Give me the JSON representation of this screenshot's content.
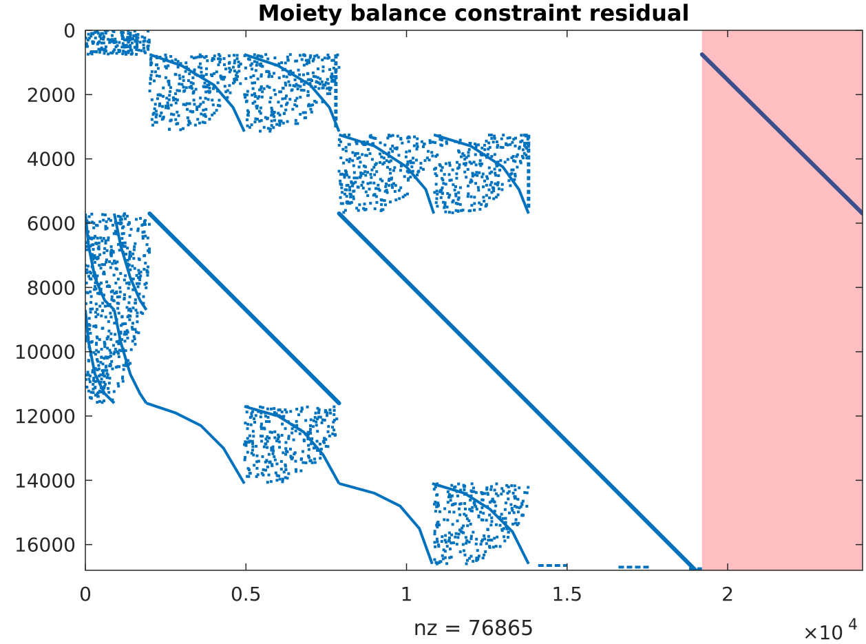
{
  "chart_data": {
    "type": "spy",
    "title": "Moiety balance constraint residual",
    "xlabel": "nz = 76865",
    "ylabel": "",
    "nz": 76865,
    "x_exponent_label": "×10",
    "x_exponent_power": "4",
    "xlim": [
      0,
      24200
    ],
    "ylim": [
      0,
      16800
    ],
    "y_reversed": true,
    "grid": false,
    "x_ticks": [
      {
        "value": 0,
        "label": "0"
      },
      {
        "value": 5000,
        "label": "0.5"
      },
      {
        "value": 10000,
        "label": "1"
      },
      {
        "value": 15000,
        "label": "1.5"
      },
      {
        "value": 20000,
        "label": "2"
      }
    ],
    "y_ticks": [
      {
        "value": 0,
        "label": "0"
      },
      {
        "value": 2000,
        "label": "2000"
      },
      {
        "value": 4000,
        "label": "4000"
      },
      {
        "value": 6000,
        "label": "6000"
      },
      {
        "value": 8000,
        "label": "8000"
      },
      {
        "value": 10000,
        "label": "10000"
      },
      {
        "value": 12000,
        "label": "12000"
      },
      {
        "value": 14000,
        "label": "14000"
      },
      {
        "value": 16000,
        "label": "16000"
      }
    ],
    "highlight_region": {
      "x_range": [
        19200,
        24200
      ],
      "color": "#ffbfc2"
    },
    "marker_color": "#0072bd",
    "highlight_line_color": "#3a4f8c",
    "diagonal_lines": [
      {
        "x": [
          2000,
          7900
        ],
        "y": [
          5700,
          11600
        ]
      },
      {
        "x": [
          7900,
          19000
        ],
        "y": [
          5700,
          16800
        ]
      },
      {
        "x": [
          19200,
          24200
        ],
        "y": [
          750,
          5700
        ],
        "highlighted": true
      }
    ],
    "curves": [
      {
        "x": [
          2000,
          3000,
          4000,
          4600,
          4950
        ],
        "y": [
          750,
          1100,
          1700,
          2400,
          3150
        ]
      },
      {
        "x": [
          4950,
          6000,
          7000,
          7600,
          7900
        ],
        "y": [
          750,
          1100,
          1700,
          2400,
          3150
        ]
      },
      {
        "x": [
          7900,
          9000,
          10000,
          10600,
          10850
        ],
        "y": [
          3250,
          3600,
          4250,
          4950,
          5700
        ]
      },
      {
        "x": [
          10850,
          12000,
          13000,
          13500,
          13800
        ],
        "y": [
          3250,
          3600,
          4250,
          4950,
          5700
        ]
      },
      {
        "x": [
          0,
          100,
          300,
          600,
          900
        ],
        "y": [
          5700,
          6700,
          7700,
          8400,
          8700
        ]
      },
      {
        "x": [
          900,
          1100,
          1400,
          1700,
          1900
        ],
        "y": [
          5700,
          6700,
          7700,
          8400,
          8700
        ]
      },
      {
        "x": [
          0,
          100,
          300,
          600,
          900
        ],
        "y": [
          8700,
          9700,
          10700,
          11300,
          11600
        ]
      },
      {
        "x": [
          900,
          1100,
          1400,
          1700,
          1900
        ],
        "y": [
          8700,
          9700,
          10700,
          11300,
          11600
        ]
      },
      {
        "x": [
          1900,
          2800,
          3600,
          4300,
          4950
        ],
        "y": [
          11600,
          11900,
          12300,
          13000,
          14100
        ]
      },
      {
        "x": [
          4950,
          6000,
          6800,
          7400,
          7900
        ],
        "y": [
          11700,
          12000,
          12500,
          13200,
          14100
        ]
      },
      {
        "x": [
          7900,
          9000,
          9800,
          10400,
          10800
        ],
        "y": [
          14100,
          14400,
          14800,
          15500,
          16600
        ]
      },
      {
        "x": [
          10800,
          11800,
          12600,
          13300,
          13800
        ],
        "y": [
          14100,
          14400,
          14900,
          15600,
          16600
        ]
      }
    ],
    "scatter_blocks": [
      {
        "x": [
          0,
          2000
        ],
        "y": [
          0,
          750
        ],
        "density": 0.9
      },
      {
        "x": [
          2000,
          4950
        ],
        "y": [
          750,
          3150
        ],
        "density": 0.35
      },
      {
        "x": [
          4950,
          7900
        ],
        "y": [
          750,
          3150
        ],
        "density": 0.35
      },
      {
        "x": [
          7900,
          10850
        ],
        "y": [
          3250,
          5700
        ],
        "density": 0.35
      },
      {
        "x": [
          10850,
          13800
        ],
        "y": [
          3250,
          5700
        ],
        "density": 0.35
      },
      {
        "x": [
          0,
          2000
        ],
        "y": [
          5700,
          11600
        ],
        "density": 0.4
      },
      {
        "x": [
          4950,
          7900
        ],
        "y": [
          11700,
          14100
        ],
        "density": 0.35
      },
      {
        "x": [
          10850,
          13800
        ],
        "y": [
          14100,
          16600
        ],
        "density": 0.35
      }
    ],
    "column_segments": [
      {
        "x": 7800,
        "y": [
          750,
          3100
        ]
      },
      {
        "x": 13800,
        "y": [
          3250,
          5600
        ]
      }
    ],
    "bottom_dashes": [
      {
        "x": [
          14100,
          15000
        ],
        "y": 16650
      },
      {
        "x": [
          16600,
          17600
        ],
        "y": 16700
      },
      {
        "x": [
          18800,
          19200
        ],
        "y": 16750
      }
    ]
  }
}
